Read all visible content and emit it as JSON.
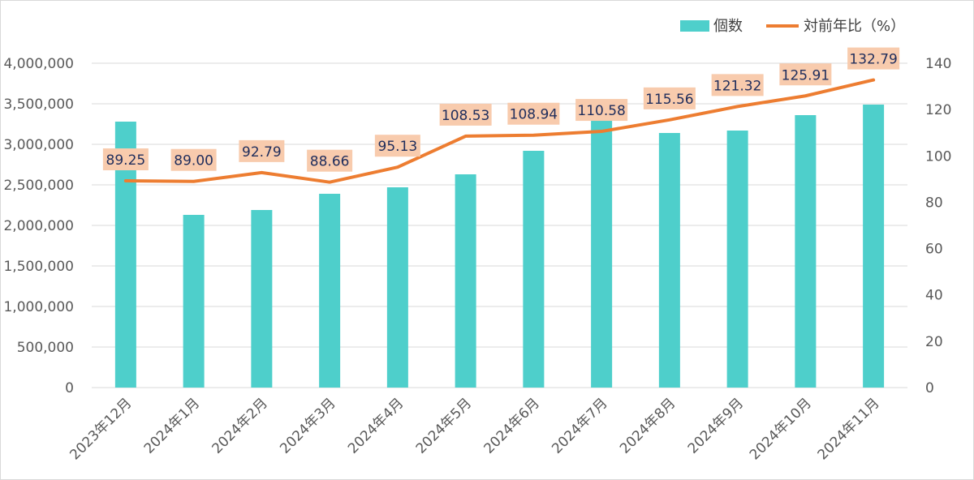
{
  "chart_data": {
    "type": "bar",
    "categories": [
      "2023年12月",
      "2024年1月",
      "2024年2月",
      "2024年3月",
      "2024年4月",
      "2024年5月",
      "2024年6月",
      "2024年7月",
      "2024年8月",
      "2024年9月",
      "2024年10月",
      "2024年11月"
    ],
    "series": [
      {
        "name": "個数",
        "type": "bar",
        "axis": "left",
        "color": "#4ecfcb",
        "values": [
          3280000,
          2130000,
          2190000,
          2390000,
          2470000,
          2630000,
          2920000,
          3310000,
          3140000,
          3170000,
          3360000,
          3490000
        ]
      },
      {
        "name": "対前年比（%）",
        "type": "line",
        "axis": "right",
        "color": "#ed7d31",
        "values": [
          89.25,
          89.0,
          92.79,
          88.66,
          95.13,
          108.53,
          108.94,
          110.58,
          115.56,
          121.32,
          125.91,
          132.79
        ],
        "data_labels": [
          "89.25",
          "89.00",
          "92.79",
          "88.66",
          "95.13",
          "108.53",
          "108.94",
          "110.58",
          "115.56",
          "121.32",
          "125.91",
          "132.79"
        ],
        "label_bg": "#f8cbad"
      }
    ],
    "y_left": {
      "ylim": [
        0,
        4000000
      ],
      "ticks": [
        0,
        500000,
        1000000,
        1500000,
        2000000,
        2500000,
        3000000,
        3500000,
        4000000
      ],
      "tick_labels": [
        "0",
        "500,000",
        "1,000,000",
        "1,500,000",
        "2,000,000",
        "2,500,000",
        "3,000,000",
        "3,500,000",
        "4,000,000"
      ]
    },
    "y_right": {
      "ylim": [
        0,
        140
      ],
      "ticks": [
        0,
        20,
        40,
        60,
        80,
        100,
        120,
        140
      ],
      "tick_labels": [
        "0",
        "20",
        "40",
        "60",
        "80",
        "100",
        "120",
        "140"
      ]
    },
    "grid": true,
    "legend": {
      "position": "top-right",
      "items": [
        {
          "label": "個数",
          "marker": "rect",
          "color": "#4ecfcb"
        },
        {
          "label": "対前年比（%）",
          "marker": "line",
          "color": "#ed7d31"
        }
      ]
    }
  }
}
